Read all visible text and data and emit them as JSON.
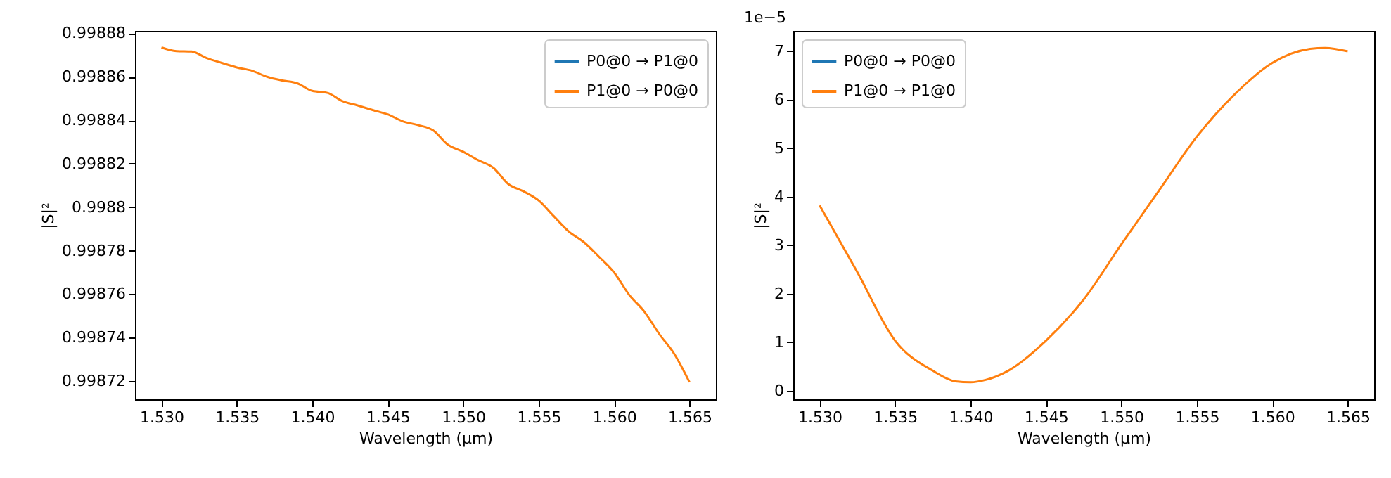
{
  "chart_data": [
    {
      "type": "line",
      "xlabel": "Wavelength (μm)",
      "ylabel": "|S|²",
      "legend": "top right",
      "x": [
        1.53,
        1.531,
        1.532,
        1.533,
        1.534,
        1.535,
        1.536,
        1.537,
        1.538,
        1.539,
        1.54,
        1.541,
        1.542,
        1.543,
        1.544,
        1.545,
        1.546,
        1.547,
        1.548,
        1.549,
        1.55,
        1.551,
        1.552,
        1.553,
        1.554,
        1.555,
        1.556,
        1.557,
        1.558,
        1.559,
        1.56,
        1.561,
        1.562,
        1.563,
        1.564,
        1.565
      ],
      "series": [
        {
          "name": "P0@0 → P1@0",
          "color": "#1f77b4",
          "values": [
            null,
            null,
            null,
            null,
            null,
            null,
            null,
            null,
            null,
            null,
            null,
            null,
            null,
            null,
            null,
            null,
            null,
            null,
            null,
            null,
            null,
            null,
            null,
            null,
            null,
            null,
            null,
            null,
            null,
            null,
            null,
            null,
            null,
            null,
            null,
            null
          ]
        },
        {
          "name": "P1@0 → P0@0",
          "color": "#ff7f0e",
          "values": [
            0.9988735,
            0.9988718,
            0.9988716,
            0.9988686,
            0.9988664,
            0.9988643,
            0.9988628,
            0.99886,
            0.9988583,
            0.998857,
            0.9988535,
            0.9988526,
            0.9988488,
            0.9988468,
            0.9988447,
            0.9988427,
            0.9988395,
            0.9988378,
            0.9988354,
            0.9988287,
            0.9988255,
            0.9988216,
            0.9988181,
            0.9988106,
            0.9988073,
            0.9988031,
            0.9987959,
            0.9987888,
            0.9987839,
            0.9987772,
            0.99877,
            0.9987597,
            0.998752,
            0.9987416,
            0.9987324,
            0.9987195
          ]
        }
      ],
      "xlim": [
        1.52825,
        1.56675
      ],
      "xticks": [
        {
          "value": 1.53,
          "label": "1.530"
        },
        1.535,
        {
          "value": 1.54,
          "label": "1.540"
        },
        1.545,
        {
          "value": 1.55,
          "label": "1.550"
        },
        1.555,
        {
          "value": 1.56,
          "label": "1.560"
        },
        1.565
      ],
      "ylim": [
        0.9987116,
        0.9988811
      ],
      "yticks": [
        0.99872,
        0.99874,
        0.99876,
        0.99878,
        0.9988,
        0.99882,
        0.99884,
        0.99886,
        0.99888
      ]
    },
    {
      "type": "line",
      "xlabel": "Wavelength (μm)",
      "ylabel": "|S|²",
      "legend": "top left",
      "annotations": [
        "1e−5"
      ],
      "x": [
        1.53,
        1.5325,
        1.535,
        1.5375,
        1.539,
        1.54,
        1.541,
        1.5425,
        1.545,
        1.5475,
        1.55,
        1.5525,
        1.555,
        1.5575,
        1.56,
        1.5625,
        1.5635,
        1.565
      ],
      "series": [
        {
          "name": "P0@0 → P0@0",
          "color": "#1f77b4",
          "values": [
            null,
            null,
            null,
            null,
            null,
            null,
            null,
            null,
            null,
            null,
            null,
            null,
            null,
            null,
            null,
            null,
            null,
            null
          ]
        },
        {
          "name": "P1@0 → P1@0",
          "color": "#ff7f0e",
          "values": [
            3.82,
            2.44,
            1.03,
            0.41,
            0.19,
            0.17,
            0.22,
            0.41,
            1.03,
            1.88,
            3.02,
            4.13,
            5.24,
            6.11,
            6.76,
            7.05,
            7.07,
            7.0
          ]
        }
      ],
      "xlim": [
        1.52825,
        1.56675
      ],
      "xticks": [
        {
          "value": 1.53,
          "label": "1.530"
        },
        1.535,
        {
          "value": 1.54,
          "label": "1.540"
        },
        1.545,
        {
          "value": 1.55,
          "label": "1.550"
        },
        1.555,
        {
          "value": 1.56,
          "label": "1.560"
        },
        1.565
      ],
      "ylim": [
        -0.18,
        7.42
      ],
      "yticks": [
        0,
        1,
        2,
        3,
        4,
        5,
        6,
        7
      ]
    }
  ]
}
